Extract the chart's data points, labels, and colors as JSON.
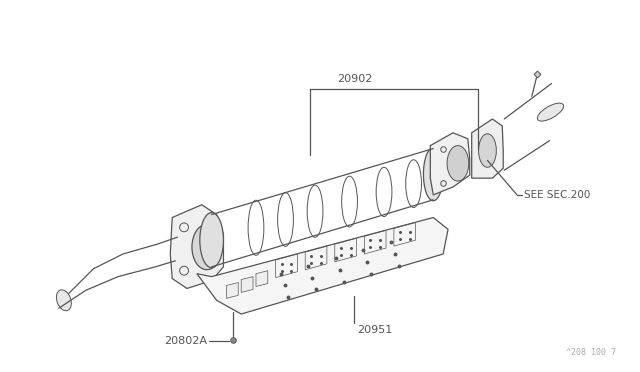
{
  "bg_color": "#ffffff",
  "line_color": "#555555",
  "label_color": "#555555",
  "fig_width": 6.4,
  "fig_height": 3.72,
  "watermark": "^208 100 7"
}
